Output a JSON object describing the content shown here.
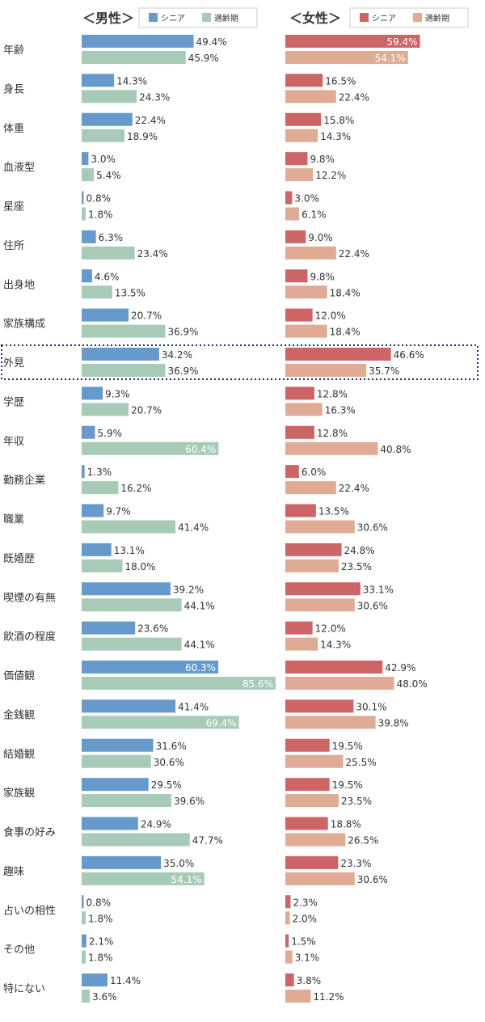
{
  "chart_data": {
    "type": "bar",
    "orientation": "horizontal",
    "unit": "%",
    "xlim": [
      0,
      100
    ],
    "categories": [
      "年齢",
      "身長",
      "体重",
      "血液型",
      "星座",
      "住所",
      "出身地",
      "家族構成",
      "外見",
      "学歴",
      "年収",
      "勤務企業",
      "職業",
      "既婚歴",
      "喫煙の有無",
      "飲酒の程度",
      "価値観",
      "金銭観",
      "結婚観",
      "家族観",
      "食事の好み",
      "趣味",
      "占いの相性",
      "その他",
      "特にない"
    ],
    "highlighted_category": "外見",
    "panels": [
      {
        "title": "＜男性＞",
        "series": [
          {
            "name": "シニア",
            "color": "#6699cc",
            "values": [
              49.4,
              14.3,
              22.4,
              3.0,
              0.8,
              6.3,
              4.6,
              20.7,
              34.2,
              9.3,
              5.9,
              1.3,
              9.7,
              13.1,
              39.2,
              23.6,
              60.3,
              41.4,
              31.6,
              29.5,
              24.9,
              35.0,
              0.8,
              2.1,
              11.4
            ]
          },
          {
            "name": "適齢期",
            "color": "#a8cbb8",
            "values": [
              45.9,
              24.3,
              18.9,
              5.4,
              1.8,
              23.4,
              13.5,
              36.9,
              36.9,
              20.7,
              60.4,
              16.2,
              41.4,
              18.0,
              44.1,
              44.1,
              85.6,
              69.4,
              30.6,
              39.6,
              47.7,
              54.1,
              1.8,
              1.8,
              3.6
            ]
          }
        ]
      },
      {
        "title": "＜女性＞",
        "series": [
          {
            "name": "シニア",
            "color": "#cd6466",
            "values": [
              59.4,
              16.5,
              15.8,
              9.8,
              3.0,
              9.0,
              9.8,
              12.0,
              46.6,
              12.8,
              12.8,
              6.0,
              13.5,
              24.8,
              33.1,
              12.0,
              42.9,
              30.1,
              19.5,
              19.5,
              18.8,
              23.3,
              2.3,
              1.5,
              3.8
            ]
          },
          {
            "name": "適齢期",
            "color": "#dfab95",
            "values": [
              54.1,
              22.4,
              14.3,
              12.2,
              6.1,
              22.4,
              18.4,
              18.4,
              35.7,
              16.3,
              40.8,
              22.4,
              30.6,
              23.5,
              30.6,
              14.3,
              48.0,
              39.8,
              25.5,
              23.5,
              26.5,
              30.6,
              2.0,
              3.1,
              11.2
            ]
          }
        ]
      }
    ]
  }
}
